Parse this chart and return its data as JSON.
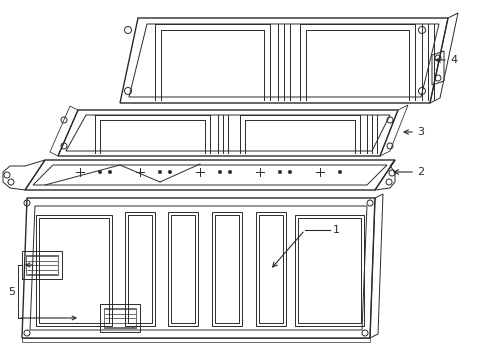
{
  "bg_color": "#ffffff",
  "lc": "#2a2a2a",
  "lw": 0.7,
  "lw2": 1.0,
  "figsize": [
    4.9,
    3.6
  ],
  "dpi": 100
}
